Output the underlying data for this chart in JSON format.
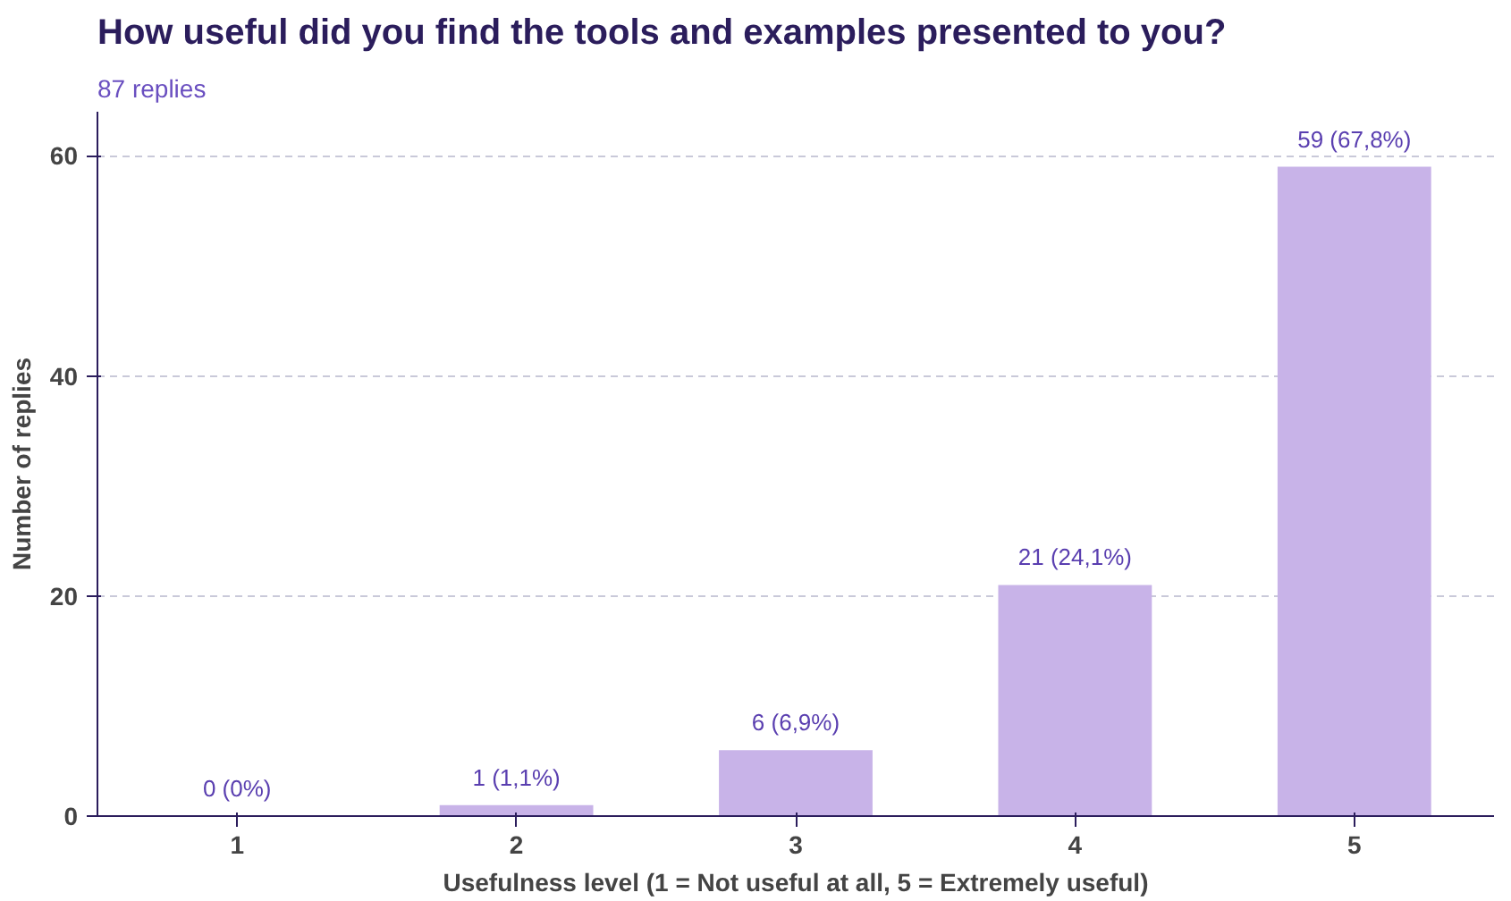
{
  "chart_data": {
    "type": "bar",
    "title": "How useful did you find the tools and examples presented to you?",
    "subtitle": "87 replies",
    "xlabel": "Usefulness level (1 = Not useful at all, 5 = Extremely useful)",
    "ylabel": "Number of replies",
    "categories": [
      "1",
      "2",
      "3",
      "4",
      "5"
    ],
    "values": [
      0,
      1,
      6,
      21,
      59
    ],
    "color": "#c8b3e8",
    "value_labels": [
      "0 (0%)",
      "1 (1,1%)",
      "6 (6,9%)",
      "21 (24,1%)",
      "59 (67,8%)"
    ],
    "ylim": [
      0,
      64
    ],
    "yticks": [
      0,
      20,
      40,
      60
    ],
    "grid": "y"
  }
}
